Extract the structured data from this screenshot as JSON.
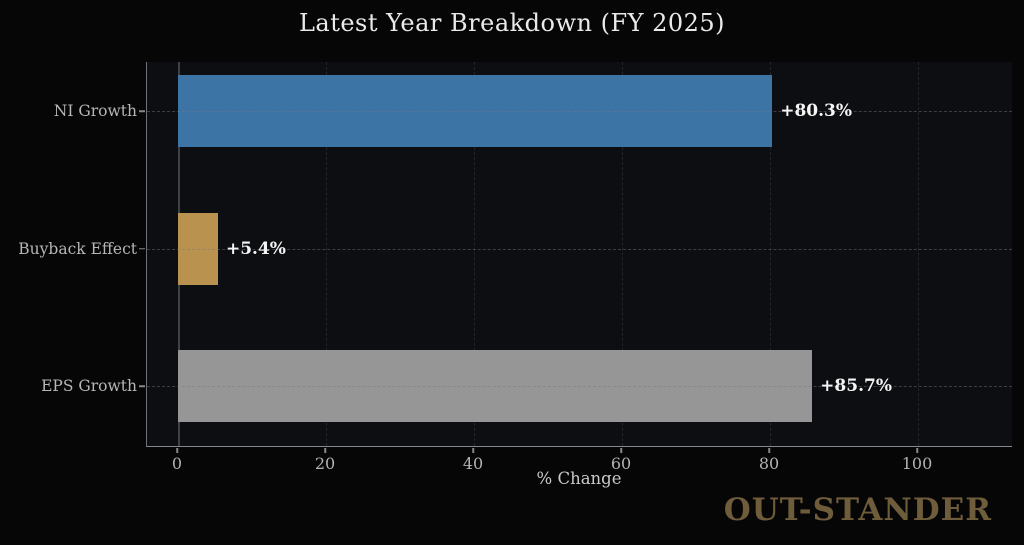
{
  "title": "Latest Year Breakdown (FY 2025)",
  "watermark": "OUT-STANDER",
  "chart_data": {
    "type": "bar",
    "orientation": "horizontal",
    "title": "Latest Year Breakdown (FY 2025)",
    "xlabel": "% Change",
    "ylabel": "",
    "categories": [
      "NI Growth",
      "Buyback Effect",
      "EPS Growth"
    ],
    "values": [
      80.3,
      5.4,
      85.7
    ],
    "value_labels": [
      "+80.3%",
      "+5.4%",
      "+85.7%"
    ],
    "bar_colors": [
      "#3d74a6",
      "#b8924e",
      "#969696"
    ],
    "xticks": [
      0,
      20,
      40,
      60,
      80,
      100
    ],
    "xtick_labels": [
      "0",
      "20",
      "40",
      "60",
      "80",
      "100"
    ],
    "xlim": [
      -4.2,
      112.8
    ],
    "grid": "dashed",
    "legend": "none",
    "colors": {
      "page_background": "#060607",
      "plot_background": "#0d0e12",
      "title_text": "#eaeaea",
      "tick_text": "#b2b2b2",
      "value_label_text": "#f5f5f5",
      "watermark_text": "#6e5c3b",
      "zero_line": "#3e4147"
    }
  }
}
